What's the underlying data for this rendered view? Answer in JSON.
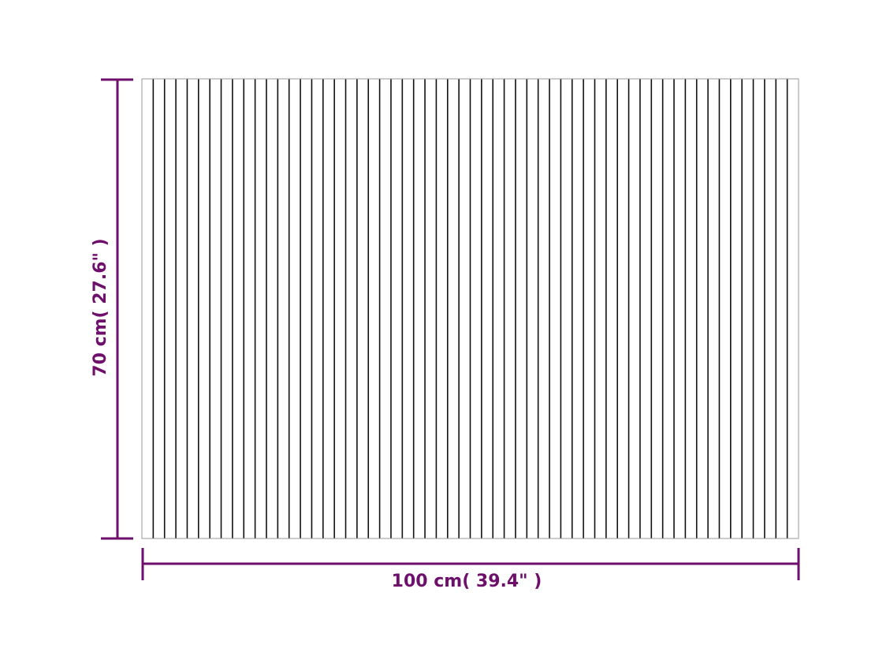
{
  "colors": {
    "dimension": "#6e0f6b",
    "slat_line": "#111111",
    "outline": "#999999"
  },
  "width_label": "100 cm( 39.4\" )",
  "height_label": "70 cm( 27.6\" )"
}
